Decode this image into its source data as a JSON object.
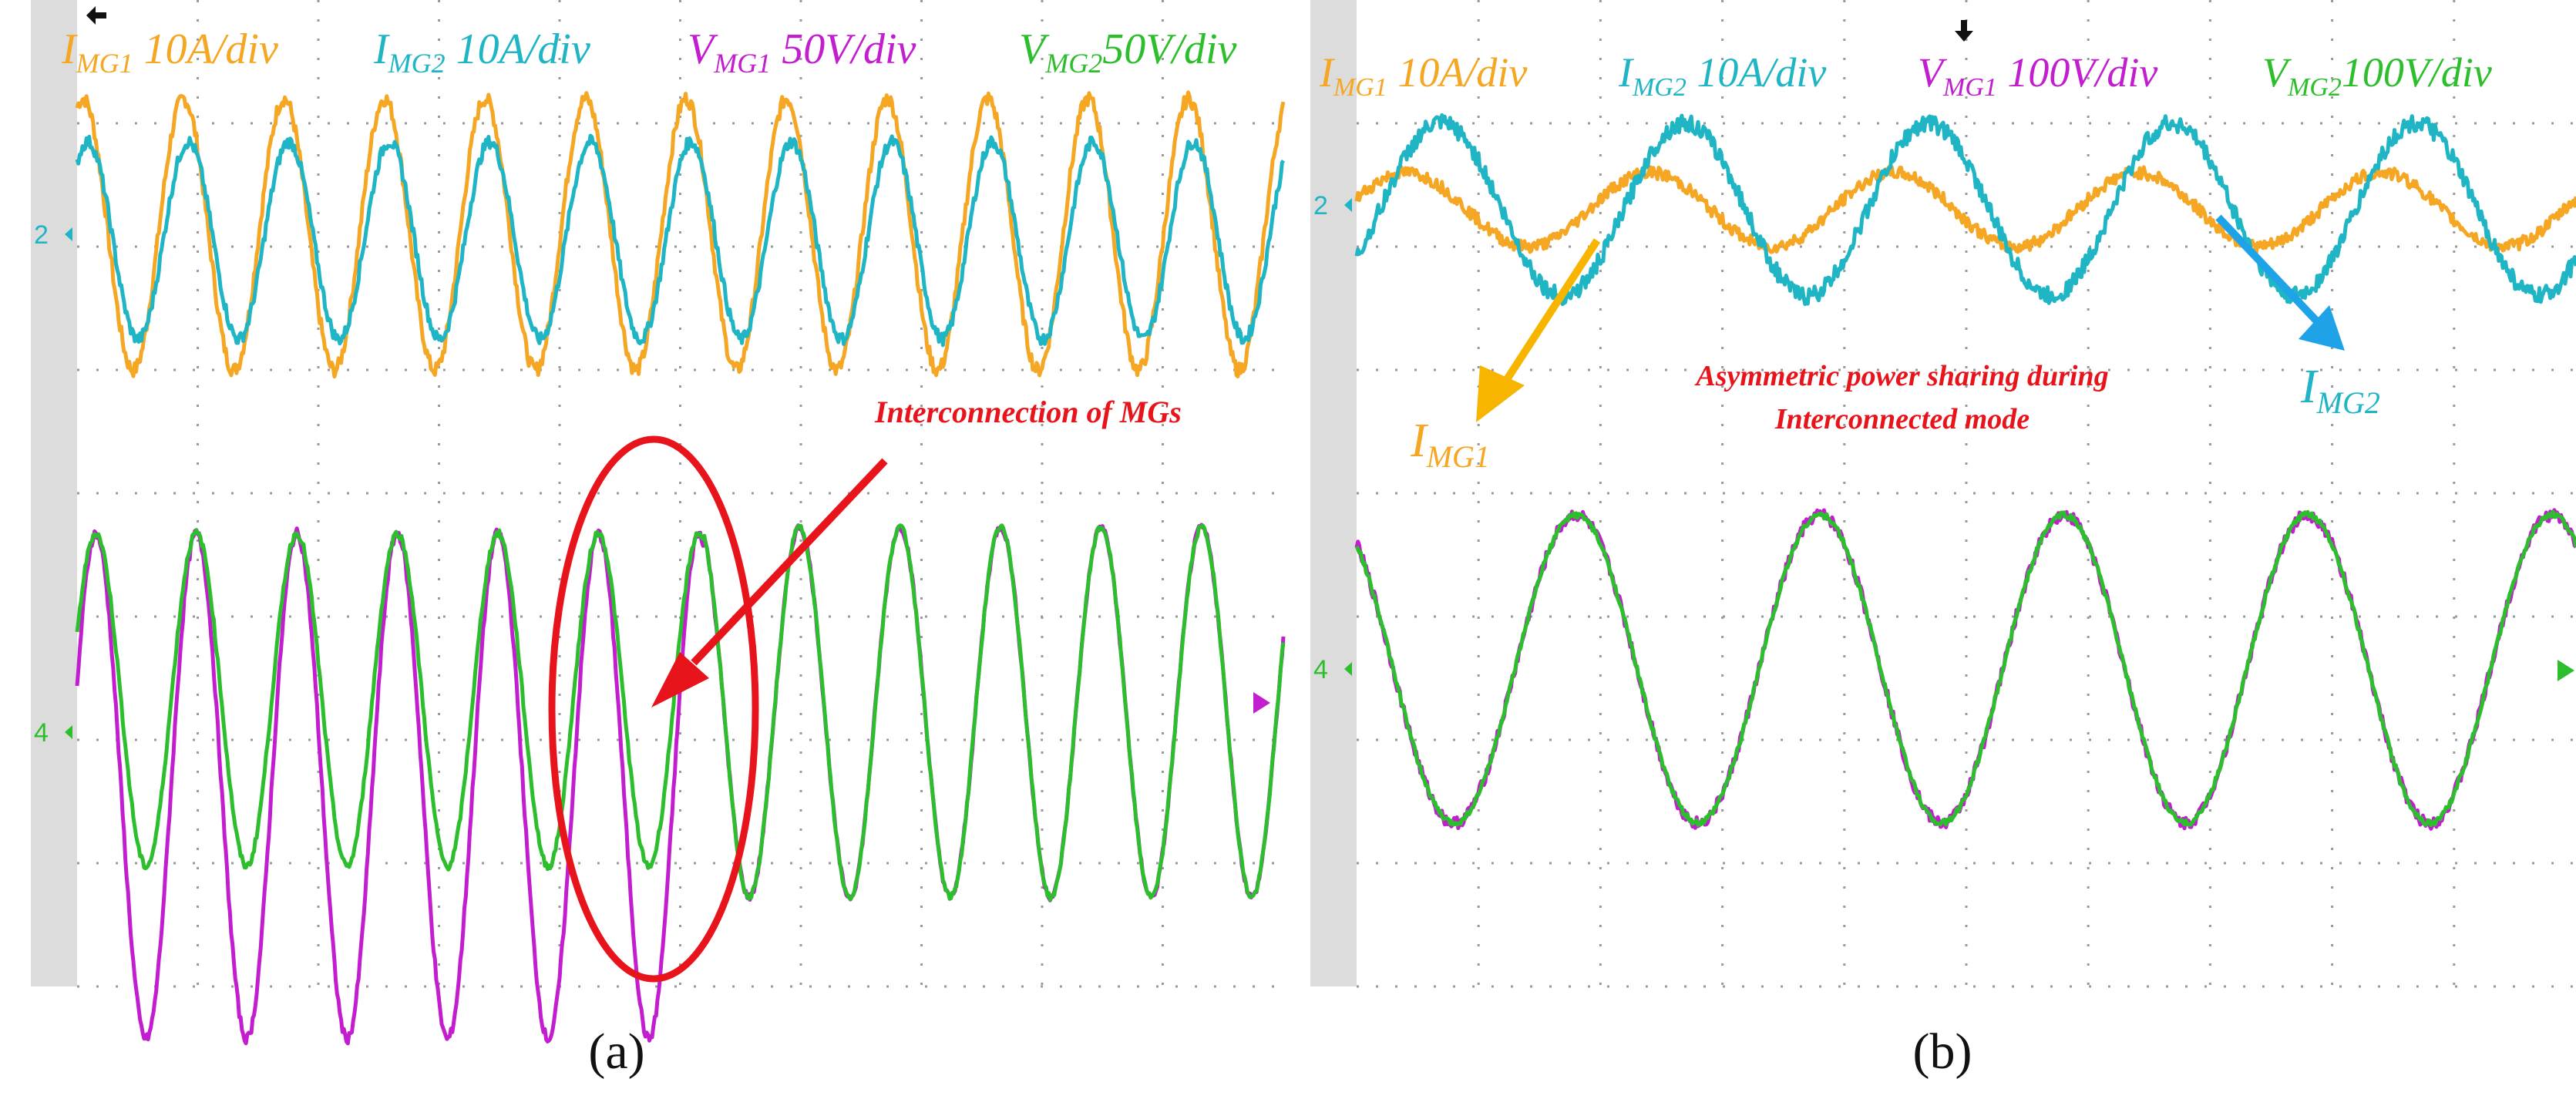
{
  "colors": {
    "i_mg1": "#F5A623",
    "i_mg2": "#1FB5C4",
    "v_mg1": "#C21ECF",
    "v_mg2": "#2DBE2D",
    "annotation": "#E8141B",
    "i_mg2_arrow": "#1FA3E8",
    "grid": "#9A9A9A",
    "screen_bg": "#FFFFFF",
    "left_margin": "#DCDCDC"
  },
  "chart_data": [
    {
      "type": "line",
      "panel": "a",
      "caption": "(a)",
      "grid": true,
      "channel_labels": [
        {
          "sym": "I",
          "sub": "MG1",
          "rest": " 10A/div",
          "color_key": "i_mg1"
        },
        {
          "sym": "I",
          "sub": "MG2",
          "rest": " 10A/div",
          "color_key": "i_mg2"
        },
        {
          "sym": "V",
          "sub": "MG1",
          "rest": " 50V/div",
          "color_key": "v_mg1"
        },
        {
          "sym": "V",
          "sub": "MG2",
          "rest": "50V/div",
          "color_key": "v_mg2"
        }
      ],
      "channel_markers": [
        "2",
        "4"
      ],
      "annotations": {
        "interconnection": "Interconnection of MGs"
      },
      "series": [
        {
          "name": "I_MG1",
          "color_key": "i_mg1",
          "group": "current",
          "cycles": 12,
          "amp_div": 1.1,
          "offset_div": 0.1,
          "phase": 0.15
        },
        {
          "name": "I_MG2",
          "color_key": "i_mg2",
          "group": "current",
          "cycles": 12,
          "amp_div": 0.8,
          "offset_div": 0.05,
          "phase": 0.0
        },
        {
          "name": "V_MG1",
          "color_key": "v_mg1",
          "group": "voltage",
          "cycles": 12,
          "amp_div": 2.05,
          "offset_div": -0.5,
          "phase": 0.18,
          "note": "large amplitude before interconnection"
        },
        {
          "name": "V_MG2",
          "color_key": "v_mg2",
          "group": "voltage",
          "cycles": 12,
          "amp_div": 1.35,
          "offset_div": 0.2,
          "phase": 0.18,
          "note": "merges with V_MG1 after interconnection"
        }
      ]
    },
    {
      "type": "line",
      "panel": "b",
      "caption": "(b)",
      "grid": true,
      "channel_labels": [
        {
          "sym": "I",
          "sub": "MG1",
          "rest": " 10A/div",
          "color_key": "i_mg1"
        },
        {
          "sym": "I",
          "sub": "MG2",
          "rest": " 10A/div",
          "color_key": "i_mg2"
        },
        {
          "sym": "V",
          "sub": "MG1",
          "rest": " 100V/div",
          "color_key": "v_mg1"
        },
        {
          "sym": "V",
          "sub": "MG2",
          "rest": "100V/div",
          "color_key": "v_mg2"
        }
      ],
      "channel_markers": [
        "2",
        "4"
      ],
      "annotations": {
        "note_line1": "Asymmetric power sharing during",
        "note_line2": "Interconnected mode",
        "i_mg1_label": {
          "sym": "I",
          "sub": "MG1"
        },
        "i_mg2_label": {
          "sym": "I",
          "sub": "MG2"
        }
      },
      "series": [
        {
          "name": "I_MG1",
          "color_key": "i_mg1",
          "group": "current",
          "cycles": 5,
          "amp_div": 0.3,
          "offset_div": 0.0
        },
        {
          "name": "I_MG2",
          "color_key": "i_mg2",
          "group": "current",
          "cycles": 5,
          "amp_div": 0.7,
          "offset_div": 0.0
        },
        {
          "name": "V_MG1",
          "color_key": "v_mg1",
          "group": "voltage",
          "cycles": 5,
          "amp_div": 1.25,
          "offset_div": 0.0
        },
        {
          "name": "V_MG2",
          "color_key": "v_mg2",
          "group": "voltage",
          "cycles": 5,
          "amp_div": 1.25,
          "offset_div": 0.0
        }
      ]
    }
  ]
}
